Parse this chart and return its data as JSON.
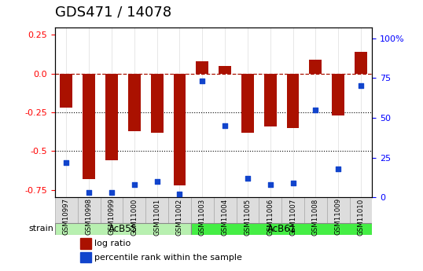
{
  "title": "GDS471 / 14078",
  "samples": [
    "GSM10997",
    "GSM10998",
    "GSM10999",
    "GSM11000",
    "GSM11001",
    "GSM11002",
    "GSM11003",
    "GSM11004",
    "GSM11005",
    "GSM11006",
    "GSM11007",
    "GSM11008",
    "GSM11009",
    "GSM11010"
  ],
  "log_ratio": [
    -0.22,
    -0.68,
    -0.56,
    -0.37,
    -0.38,
    -0.72,
    0.08,
    0.05,
    -0.38,
    -0.34,
    -0.35,
    0.09,
    -0.27,
    0.14
  ],
  "percentile_rank": [
    22,
    3,
    3,
    8,
    10,
    2,
    73,
    45,
    12,
    8,
    9,
    55,
    18,
    70
  ],
  "groups": [
    {
      "label": "AcB55",
      "start": 0,
      "end": 5,
      "color": "#b8f0b0"
    },
    {
      "label": "AcB61",
      "start": 6,
      "end": 13,
      "color": "#44ee44"
    }
  ],
  "ylim_left": [
    -0.8,
    0.3
  ],
  "ylim_right": [
    0,
    107
  ],
  "yticks_left": [
    -0.75,
    -0.5,
    -0.25,
    0.0,
    0.25
  ],
  "yticks_right": [
    0,
    25,
    50,
    75,
    100
  ],
  "ytick_labels_right": [
    "0",
    "25",
    "50",
    "75",
    "100%"
  ],
  "bar_color": "#aa1100",
  "dot_color": "#1144cc",
  "hline_y": 0.0,
  "dotted_lines": [
    -0.25,
    -0.5
  ],
  "background_color": "#ffffff",
  "plot_bg_color": "#ffffff",
  "grid_color": "#cccccc",
  "title_fontsize": 13,
  "axis_label_fontsize": 9,
  "tick_fontsize": 8
}
